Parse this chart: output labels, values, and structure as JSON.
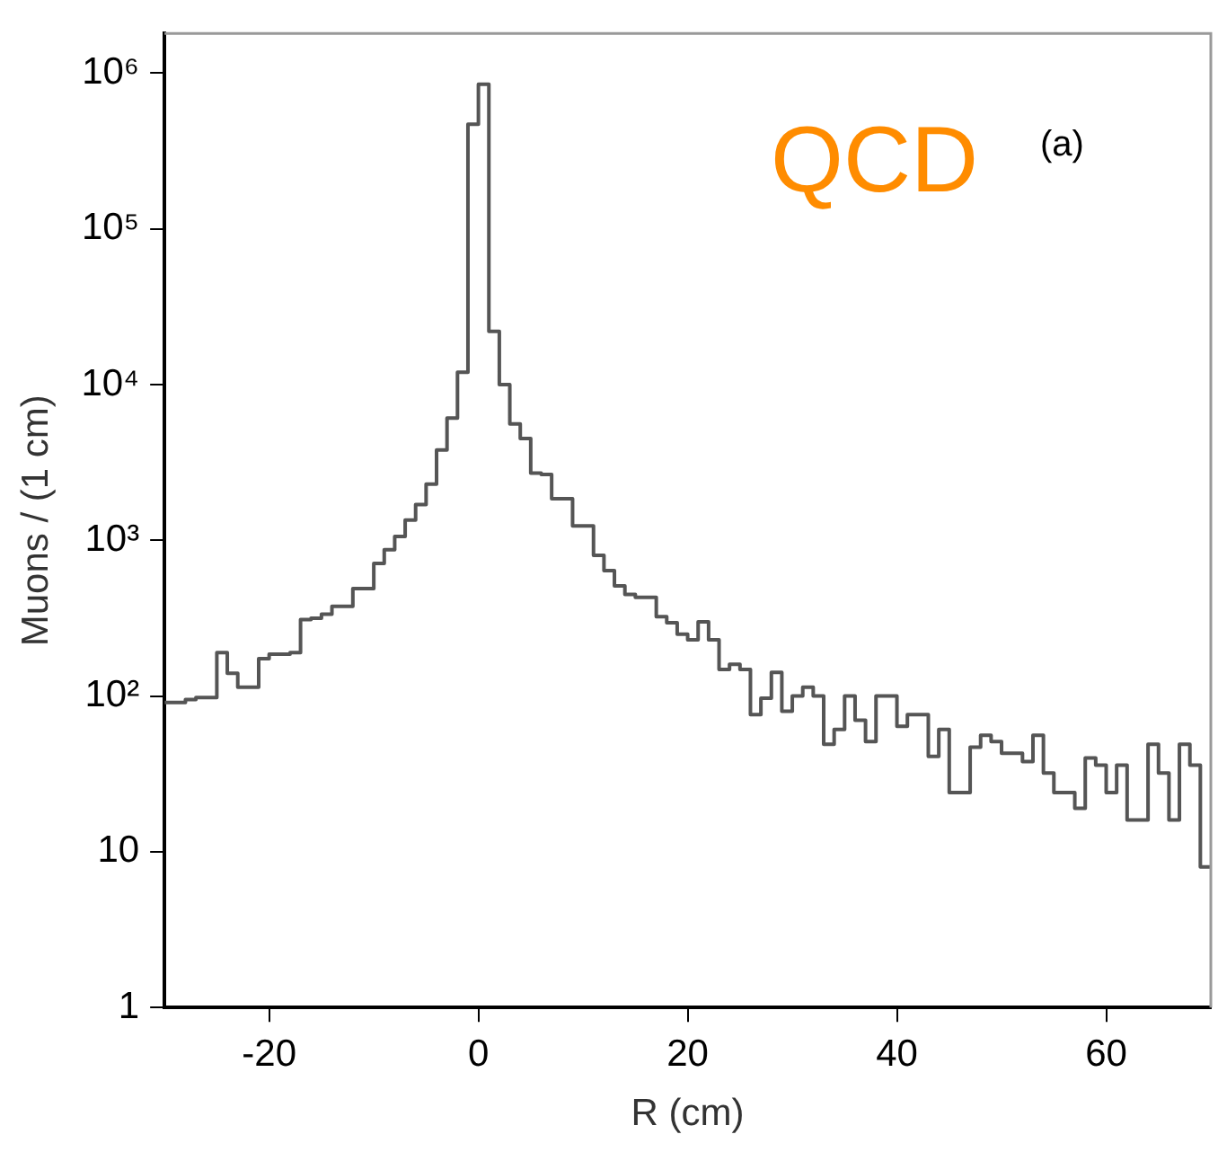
{
  "chart_data": {
    "type": "histogram",
    "xlabel": "R (cm)",
    "ylabel": "Muons / (1 cm)",
    "annotations": [
      "QCD",
      "(a)"
    ],
    "bins": [
      -30,
      -29,
      -28,
      -27,
      -26,
      -25,
      -24,
      -23,
      -22,
      -21,
      -20,
      -19,
      -18,
      -17,
      -16,
      -15,
      -14,
      -13,
      -12,
      -11,
      -10,
      -9,
      -8,
      -7,
      -6,
      -5,
      -4,
      -3,
      -2,
      -1,
      0,
      1,
      2,
      3,
      4,
      5,
      6,
      7,
      8,
      9,
      10,
      11,
      12,
      13,
      14,
      15,
      16,
      17,
      18,
      19,
      20,
      21,
      22,
      23,
      24,
      25,
      26,
      27,
      28,
      29,
      30,
      31,
      32,
      33,
      34,
      35,
      36,
      37,
      38,
      39,
      40,
      41,
      42,
      43,
      44,
      45,
      46,
      47,
      48,
      49,
      50,
      51,
      52,
      53,
      54,
      55,
      56,
      57,
      58,
      59,
      60,
      61,
      62,
      63,
      64,
      65,
      66,
      67,
      68,
      69,
      70
    ],
    "values": [
      91,
      91,
      95,
      98,
      98,
      190,
      140,
      114,
      114,
      174,
      186,
      186,
      190,
      310,
      316,
      336,
      377,
      377,
      490,
      490,
      710,
      870,
      1060,
      1350,
      1700,
      2300,
      3800,
      6100,
      12000,
      470000,
      850000,
      22000,
      10000,
      5600,
      4500,
      2700,
      2650,
      1850,
      1850,
      1240,
      1240,
      800,
      640,
      510,
      450,
      430,
      430,
      323,
      296,
      250,
      230,
      300,
      230,
      148,
      160,
      148,
      76,
      97,
      142,
      80,
      100,
      114,
      100,
      49,
      61,
      100,
      70,
      51,
      100,
      100,
      64,
      76,
      76,
      41,
      61,
      24,
      24,
      47,
      56,
      51,
      43,
      43,
      38,
      56,
      32,
      24,
      24,
      19,
      40,
      36,
      24,
      36,
      16,
      16,
      49,
      32,
      16,
      49,
      36,
      8
    ],
    "color": "#555555",
    "xlim": [
      -30,
      70
    ],
    "xticks": [
      -20,
      0,
      20,
      40,
      60
    ],
    "ylim": [
      1,
      1800000
    ],
    "log": true,
    "yticks": [
      1,
      10,
      {
        "value": 100,
        "label": "10²"
      },
      {
        "value": 1000,
        "label": "10³"
      },
      {
        "value": 10000,
        "label": "10⁴"
      },
      {
        "value": 100000,
        "label": "10⁵"
      },
      {
        "value": 1000000,
        "label": "10⁶"
      }
    ]
  }
}
